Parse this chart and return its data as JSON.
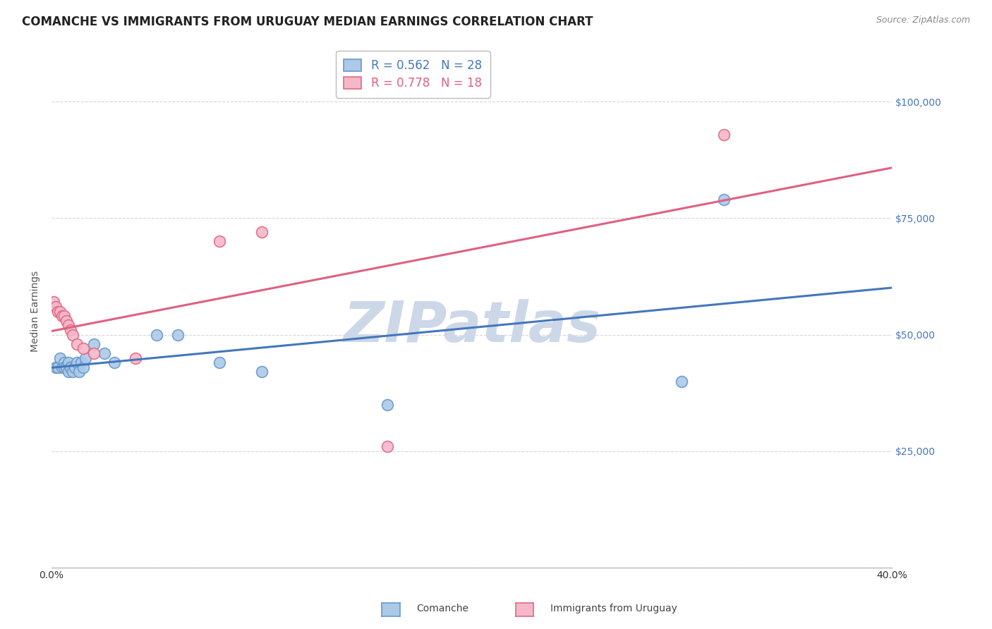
{
  "title": "COMANCHE VS IMMIGRANTS FROM URUGUAY MEDIAN EARNINGS CORRELATION CHART",
  "source": "Source: ZipAtlas.com",
  "ylabel": "Median Earnings",
  "xmin": 0.0,
  "xmax": 0.4,
  "ymin": 0,
  "ymax": 110000,
  "yticks": [
    0,
    25000,
    50000,
    75000,
    100000
  ],
  "ytick_labels": [
    "",
    "$25,000",
    "$50,000",
    "$75,000",
    "$100,000"
  ],
  "watermark": "ZIPatlas",
  "comanche_label": "Comanche",
  "uruguay_label": "Immigrants from Uruguay",
  "comanche_color": "#adc9e8",
  "comanche_edge": "#6699cc",
  "uruguay_color": "#f5b8c8",
  "uruguay_edge": "#e06888",
  "line_blue": "#4477bb",
  "line_pink": "#e06080",
  "legend_blue_text": "#4477bb",
  "legend_pink_text": "#e06080",
  "legend_line1": "R = 0.562   N = 28",
  "legend_line2": "R = 0.778   N = 18",
  "comanche_x": [
    0.002,
    0.003,
    0.004,
    0.005,
    0.006,
    0.006,
    0.007,
    0.008,
    0.008,
    0.009,
    0.009,
    0.01,
    0.011,
    0.012,
    0.013,
    0.014,
    0.015,
    0.016,
    0.02,
    0.025,
    0.03,
    0.05,
    0.06,
    0.08,
    0.1,
    0.16,
    0.3,
    0.32
  ],
  "comanche_y": [
    43000,
    43000,
    45000,
    43000,
    44000,
    43000,
    43000,
    42000,
    44000,
    43000,
    43000,
    42000,
    43000,
    44000,
    42000,
    44000,
    43000,
    45000,
    48000,
    46000,
    44000,
    50000,
    50000,
    44000,
    42000,
    35000,
    40000,
    79000
  ],
  "uruguay_x": [
    0.001,
    0.002,
    0.003,
    0.004,
    0.005,
    0.006,
    0.007,
    0.008,
    0.009,
    0.01,
    0.012,
    0.015,
    0.02,
    0.04,
    0.08,
    0.1,
    0.16,
    0.32
  ],
  "uruguay_y": [
    57000,
    56000,
    55000,
    55000,
    54000,
    54000,
    53000,
    52000,
    51000,
    50000,
    48000,
    47000,
    46000,
    45000,
    70000,
    72000,
    26000,
    93000
  ],
  "background_color": "#ffffff",
  "grid_color": "#cccccc",
  "title_fontsize": 12,
  "source_fontsize": 9,
  "axis_label_fontsize": 10,
  "tick_fontsize": 10,
  "legend_fontsize": 12,
  "watermark_color": "#ccd8e8",
  "watermark_fontsize": 58,
  "marker_size": 130
}
